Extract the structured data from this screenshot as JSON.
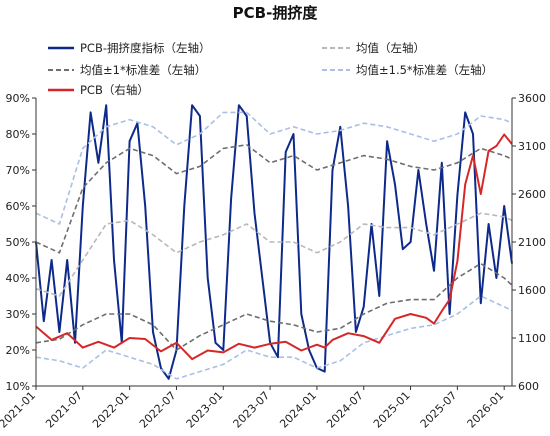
{
  "chart_data": {
    "type": "line",
    "title": "PCB-拥挤度",
    "legend": {
      "placement": "top",
      "entries": [
        {
          "label": "PCB-拥挤度指标（左轴）",
          "color": "#0d2a8a",
          "style": "solid"
        },
        {
          "label": "均值（左轴）",
          "color": "#b8b8b8",
          "style": "dashed"
        },
        {
          "label": "均值±1*标准差（左轴）",
          "color": "#6e6e6e",
          "style": "dashed"
        },
        {
          "label": "均值±1.5*标准差（左轴）",
          "color": "#a9c0e6",
          "style": "dashed"
        },
        {
          "label": "PCB（右轴）",
          "color": "#d62728",
          "style": "solid"
        }
      ]
    },
    "x_axis": {
      "type": "date",
      "range": [
        "2021-01",
        "2026-02"
      ],
      "tick_labels": [
        "2021-01",
        "2021-07",
        "2022-01",
        "2022-07",
        "2023-01",
        "2023-07",
        "2024-01",
        "2024-07",
        "2025-01",
        "2025-07",
        "2026-01"
      ]
    },
    "y_axis_left": {
      "range": [
        10,
        90
      ],
      "tick_labels": [
        "10%",
        "20%",
        "30%",
        "40%",
        "50%",
        "60%",
        "70%",
        "80%",
        "90%"
      ],
      "unit": "%"
    },
    "y_axis_right": {
      "range": [
        600,
        3600
      ],
      "tick_labels": [
        "600",
        "1100",
        "1600",
        "2100",
        "2600",
        "3100",
        "3600"
      ]
    },
    "grid": false,
    "series": [
      {
        "name": "PCB-拥挤度指标（左轴）",
        "axis": "left",
        "color": "#0d2a8a",
        "style": "solid",
        "points": [
          [
            "2021-01",
            50
          ],
          [
            "2021-02",
            28
          ],
          [
            "2021-03",
            45
          ],
          [
            "2021-04",
            25
          ],
          [
            "2021-05",
            45
          ],
          [
            "2021-06",
            22
          ],
          [
            "2021-07",
            60
          ],
          [
            "2021-08",
            86
          ],
          [
            "2021-09",
            72
          ],
          [
            "2021-10",
            88
          ],
          [
            "2021-11",
            45
          ],
          [
            "2021-12",
            22
          ],
          [
            "2022-01",
            78
          ],
          [
            "2022-02",
            83
          ],
          [
            "2022-03",
            60
          ],
          [
            "2022-04",
            25
          ],
          [
            "2022-05",
            15
          ],
          [
            "2022-06",
            12
          ],
          [
            "2022-07",
            20
          ],
          [
            "2022-08",
            60
          ],
          [
            "2022-09",
            88
          ],
          [
            "2022-10",
            85
          ],
          [
            "2022-11",
            40
          ],
          [
            "2022-12",
            22
          ],
          [
            "2023-01",
            20
          ],
          [
            "2023-02",
            62
          ],
          [
            "2023-03",
            88
          ],
          [
            "2023-04",
            85
          ],
          [
            "2023-05",
            58
          ],
          [
            "2023-06",
            40
          ],
          [
            "2023-07",
            22
          ],
          [
            "2023-08",
            18
          ],
          [
            "2023-09",
            75
          ],
          [
            "2023-10",
            80
          ],
          [
            "2023-11",
            30
          ],
          [
            "2023-12",
            20
          ],
          [
            "2024-01",
            15
          ],
          [
            "2024-02",
            14
          ],
          [
            "2024-03",
            70
          ],
          [
            "2024-04",
            82
          ],
          [
            "2024-05",
            60
          ],
          [
            "2024-06",
            25
          ],
          [
            "2024-07",
            32
          ],
          [
            "2024-08",
            55
          ],
          [
            "2024-09",
            35
          ],
          [
            "2024-10",
            78
          ],
          [
            "2024-11",
            66
          ],
          [
            "2024-12",
            48
          ],
          [
            "2025-01",
            50
          ],
          [
            "2025-02",
            70
          ],
          [
            "2025-03",
            55
          ],
          [
            "2025-04",
            42
          ],
          [
            "2025-05",
            72
          ],
          [
            "2025-06",
            30
          ],
          [
            "2025-07",
            63
          ],
          [
            "2025-08",
            86
          ],
          [
            "2025-09",
            80
          ],
          [
            "2025-10",
            33
          ],
          [
            "2025-11",
            55
          ],
          [
            "2025-12",
            40
          ],
          [
            "2026-01",
            60
          ],
          [
            "2026-02",
            44
          ]
        ]
      },
      {
        "name": "均值（左轴）",
        "axis": "left",
        "color": "#b8b8b8",
        "style": "dashed",
        "points": [
          [
            "2021-01",
            37
          ],
          [
            "2021-04",
            35
          ],
          [
            "2021-07",
            45
          ],
          [
            "2021-10",
            55
          ],
          [
            "2022-01",
            56
          ],
          [
            "2022-04",
            52
          ],
          [
            "2022-07",
            47
          ],
          [
            "2022-10",
            50
          ],
          [
            "2023-01",
            52
          ],
          [
            "2023-04",
            55
          ],
          [
            "2023-07",
            50
          ],
          [
            "2023-10",
            50
          ],
          [
            "2024-01",
            47
          ],
          [
            "2024-04",
            50
          ],
          [
            "2024-07",
            55
          ],
          [
            "2024-10",
            54
          ],
          [
            "2025-01",
            54
          ],
          [
            "2025-04",
            52
          ],
          [
            "2025-07",
            55
          ],
          [
            "2025-10",
            58
          ],
          [
            "2026-01",
            57
          ],
          [
            "2026-02",
            56
          ]
        ]
      },
      {
        "name": "均值+1*标准差（左轴）",
        "axis": "left",
        "color": "#6e6e6e",
        "style": "dashed",
        "points": [
          [
            "2021-01",
            50
          ],
          [
            "2021-04",
            47
          ],
          [
            "2021-07",
            65
          ],
          [
            "2021-10",
            72
          ],
          [
            "2022-01",
            76
          ],
          [
            "2022-04",
            74
          ],
          [
            "2022-07",
            69
          ],
          [
            "2022-10",
            71
          ],
          [
            "2023-01",
            76
          ],
          [
            "2023-04",
            77
          ],
          [
            "2023-07",
            72
          ],
          [
            "2023-10",
            74
          ],
          [
            "2024-01",
            70
          ],
          [
            "2024-04",
            72
          ],
          [
            "2024-07",
            74
          ],
          [
            "2024-10",
            73
          ],
          [
            "2025-01",
            71
          ],
          [
            "2025-04",
            70
          ],
          [
            "2025-07",
            72
          ],
          [
            "2025-10",
            76
          ],
          [
            "2026-01",
            74
          ],
          [
            "2026-02",
            73
          ]
        ]
      },
      {
        "name": "均值-1*标准差（左轴）",
        "axis": "left",
        "color": "#6e6e6e",
        "style": "dashed",
        "points": [
          [
            "2021-01",
            22
          ],
          [
            "2021-04",
            23
          ],
          [
            "2021-07",
            27
          ],
          [
            "2021-10",
            30
          ],
          [
            "2022-01",
            30
          ],
          [
            "2022-04",
            27
          ],
          [
            "2022-07",
            20
          ],
          [
            "2022-10",
            24
          ],
          [
            "2023-01",
            27
          ],
          [
            "2023-04",
            30
          ],
          [
            "2023-07",
            28
          ],
          [
            "2023-10",
            27
          ],
          [
            "2024-01",
            25
          ],
          [
            "2024-04",
            26
          ],
          [
            "2024-07",
            30
          ],
          [
            "2024-10",
            33
          ],
          [
            "2025-01",
            34
          ],
          [
            "2025-04",
            34
          ],
          [
            "2025-07",
            40
          ],
          [
            "2025-10",
            44
          ],
          [
            "2026-01",
            40
          ],
          [
            "2026-02",
            38
          ]
        ]
      },
      {
        "name": "均值+1.5*标准差（左轴）",
        "axis": "left",
        "color": "#a9c0e6",
        "style": "dashed",
        "points": [
          [
            "2021-01",
            58
          ],
          [
            "2021-04",
            55
          ],
          [
            "2021-07",
            76
          ],
          [
            "2021-10",
            82
          ],
          [
            "2022-01",
            84
          ],
          [
            "2022-04",
            82
          ],
          [
            "2022-07",
            77
          ],
          [
            "2022-10",
            80
          ],
          [
            "2023-01",
            86
          ],
          [
            "2023-04",
            86
          ],
          [
            "2023-07",
            80
          ],
          [
            "2023-10",
            82
          ],
          [
            "2024-01",
            80
          ],
          [
            "2024-04",
            81
          ],
          [
            "2024-07",
            83
          ],
          [
            "2024-10",
            82
          ],
          [
            "2025-01",
            80
          ],
          [
            "2025-04",
            78
          ],
          [
            "2025-07",
            80
          ],
          [
            "2025-10",
            85
          ],
          [
            "2026-01",
            84
          ],
          [
            "2026-02",
            83
          ]
        ]
      },
      {
        "name": "均值-1.5*标准差（左轴）",
        "axis": "left",
        "color": "#a9c0e6",
        "style": "dashed",
        "points": [
          [
            "2021-01",
            18
          ],
          [
            "2021-04",
            17
          ],
          [
            "2021-07",
            15
          ],
          [
            "2021-10",
            20
          ],
          [
            "2022-01",
            18
          ],
          [
            "2022-04",
            16
          ],
          [
            "2022-07",
            12
          ],
          [
            "2022-10",
            14
          ],
          [
            "2023-01",
            16
          ],
          [
            "2023-04",
            20
          ],
          [
            "2023-07",
            18
          ],
          [
            "2023-10",
            18
          ],
          [
            "2024-01",
            15
          ],
          [
            "2024-04",
            17
          ],
          [
            "2024-07",
            22
          ],
          [
            "2024-10",
            24
          ],
          [
            "2025-01",
            26
          ],
          [
            "2025-04",
            27
          ],
          [
            "2025-07",
            30
          ],
          [
            "2025-10",
            35
          ],
          [
            "2026-01",
            32
          ],
          [
            "2026-02",
            31
          ]
        ]
      },
      {
        "name": "PCB（右轴）",
        "axis": "right",
        "color": "#d62728",
        "style": "solid",
        "points": [
          [
            "2021-01",
            1220
          ],
          [
            "2021-03",
            1080
          ],
          [
            "2021-05",
            1150
          ],
          [
            "2021-07",
            1000
          ],
          [
            "2021-09",
            1060
          ],
          [
            "2021-11",
            1000
          ],
          [
            "2022-01",
            1100
          ],
          [
            "2022-03",
            1090
          ],
          [
            "2022-05",
            960
          ],
          [
            "2022-07",
            1050
          ],
          [
            "2022-09",
            880
          ],
          [
            "2022-11",
            970
          ],
          [
            "2023-01",
            950
          ],
          [
            "2023-03",
            1040
          ],
          [
            "2023-05",
            1000
          ],
          [
            "2023-07",
            1040
          ],
          [
            "2023-09",
            1060
          ],
          [
            "2023-11",
            970
          ],
          [
            "2024-01",
            1030
          ],
          [
            "2024-02",
            1000
          ],
          [
            "2024-03",
            1080
          ],
          [
            "2024-05",
            1150
          ],
          [
            "2024-07",
            1120
          ],
          [
            "2024-09",
            1050
          ],
          [
            "2024-11",
            1300
          ],
          [
            "2025-01",
            1350
          ],
          [
            "2025-03",
            1310
          ],
          [
            "2025-04",
            1250
          ],
          [
            "2025-05",
            1380
          ],
          [
            "2025-06",
            1500
          ],
          [
            "2025-07",
            1900
          ],
          [
            "2025-08",
            2700
          ],
          [
            "2025-09",
            3000
          ],
          [
            "2025-10",
            2600
          ],
          [
            "2025-11",
            3050
          ],
          [
            "2025-12",
            3100
          ],
          [
            "2026-01",
            3220
          ],
          [
            "2026-02",
            3120
          ]
        ]
      }
    ]
  }
}
